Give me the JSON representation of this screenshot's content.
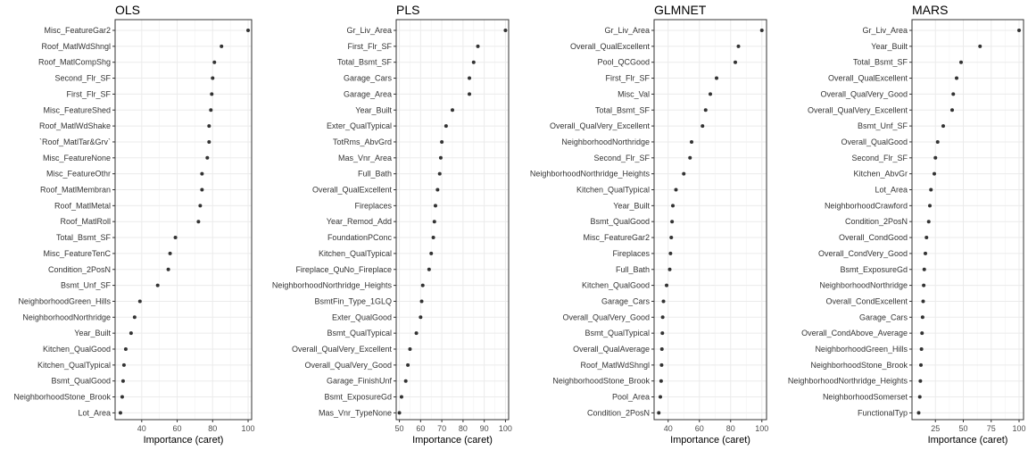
{
  "chart_data": [
    {
      "type": "scatter",
      "title": "OLS",
      "xlabel": "Importance (caret)",
      "ylabel": "",
      "xlim": [
        25,
        102
      ],
      "xticks": [
        40,
        60,
        80,
        100
      ],
      "grid": true,
      "legend": "none",
      "categories": [
        "Misc_FeatureGar2",
        "Roof_MatlWdShngl",
        "Roof_MatlCompShg",
        "Second_Flr_SF",
        "First_Flr_SF",
        "Misc_FeatureShed",
        "Roof_MatlWdShake",
        "`Roof_MatlTar&Grv`",
        "Misc_FeatureNone",
        "Misc_FeatureOthr",
        "Roof_MatlMembran",
        "Roof_MatlMetal",
        "Roof_MatlRoll",
        "Total_Bsmt_SF",
        "Misc_FeatureTenC",
        "Condition_2PosN",
        "Bsmt_Unf_SF",
        "NeighborhoodGreen_Hills",
        "NeighborhoodNorthridge",
        "Year_Built",
        "Kitchen_QualGood",
        "Kitchen_QualTypical",
        "Bsmt_QualGood",
        "NeighborhoodStone_Brook",
        "Lot_Area"
      ],
      "values": [
        100,
        85,
        81,
        80,
        79.5,
        79,
        78,
        78,
        77,
        74,
        74,
        73,
        72,
        59,
        56,
        55,
        49,
        39,
        36,
        34,
        31,
        30,
        29.5,
        29,
        28
      ]
    },
    {
      "type": "scatter",
      "title": "PLS",
      "xlabel": "Importance (caret)",
      "ylabel": "",
      "xlim": [
        48.5,
        101.5
      ],
      "xticks": [
        50,
        60,
        70,
        80,
        90,
        100
      ],
      "grid": true,
      "legend": "none",
      "categories": [
        "Gr_Liv_Area",
        "First_Flr_SF",
        "Total_Bsmt_SF",
        "Garage_Cars",
        "Garage_Area",
        "Year_Built",
        "Exter_QualTypical",
        "TotRms_AbvGrd",
        "Mas_Vnr_Area",
        "Full_Bath",
        "Overall_QualExcellent",
        "Fireplaces",
        "Year_Remod_Add",
        "FoundationPConc",
        "Kitchen_QualTypical",
        "Fireplace_QuNo_Fireplace",
        "NeighborhoodNorthridge_Heights",
        "BsmtFin_Type_1GLQ",
        "Exter_QualGood",
        "Bsmt_QualTypical",
        "Overall_QualVery_Excellent",
        "Overall_QualVery_Good",
        "Garage_FinishUnf",
        "Bsmt_ExposureGd",
        "Mas_Vnr_TypeNone"
      ],
      "values": [
        100,
        87,
        85,
        83,
        83,
        75,
        72,
        70,
        69.5,
        69,
        68,
        67,
        66.5,
        66,
        65,
        64,
        61,
        60.5,
        60,
        58,
        55,
        54,
        53,
        51,
        50
      ]
    },
    {
      "type": "scatter",
      "title": "GLMNET",
      "xlabel": "Importance (caret)",
      "ylabel": "",
      "xlim": [
        31,
        103
      ],
      "xticks": [
        40,
        60,
        80,
        100
      ],
      "grid": true,
      "legend": "none",
      "categories": [
        "Gr_Liv_Area",
        "Overall_QualExcellent",
        "Pool_QCGood",
        "First_Flr_SF",
        "Misc_Val",
        "Total_Bsmt_SF",
        "Overall_QualVery_Excellent",
        "NeighborhoodNorthridge",
        "Second_Flr_SF",
        "NeighborhoodNorthridge_Heights",
        "Kitchen_QualTypical",
        "Year_Built",
        "Bsmt_QualGood",
        "Misc_FeatureGar2",
        "Fireplaces",
        "Full_Bath",
        "Kitchen_QualGood",
        "Garage_Cars",
        "Overall_QualVery_Good",
        "Bsmt_QualTypical",
        "Overall_QualAverage",
        "Roof_MatlWdShngl",
        "NeighborhoodStone_Brook",
        "Pool_Area",
        "Condition_2PosN"
      ],
      "values": [
        100,
        85,
        83,
        71,
        67,
        64,
        62,
        55,
        54,
        50,
        45,
        43,
        42.5,
        42,
        41.5,
        41,
        39,
        37,
        36.5,
        36.3,
        36,
        35.8,
        35.5,
        35,
        34
      ]
    },
    {
      "type": "scatter",
      "title": "MARS",
      "xlabel": "Importance (caret)",
      "ylabel": "",
      "xlim": [
        4,
        104
      ],
      "xticks": [
        25,
        50,
        75,
        100
      ],
      "grid": true,
      "legend": "none",
      "categories": [
        "Gr_Liv_Area",
        "Year_Built",
        "Total_Bsmt_SF",
        "Overall_QualExcellent",
        "Overall_QualVery_Good",
        "Overall_QualVery_Excellent",
        "Bsmt_Unf_SF",
        "Overall_QualGood",
        "Second_Flr_SF",
        "Kitchen_AbvGr",
        "Lot_Area",
        "NeighborhoodCrawford",
        "Condition_2PosN",
        "Overall_CondGood",
        "Overall_CondVery_Good",
        "Bsmt_ExposureGd",
        "NeighborhoodNorthridge",
        "Overall_CondExcellent",
        "Garage_Cars",
        "Overall_CondAbove_Average",
        "NeighborhoodGreen_Hills",
        "NeighborhoodStone_Brook",
        "NeighborhoodNorthridge_Heights",
        "NeighborhoodSomerset",
        "FunctionalTyp"
      ],
      "values": [
        100,
        65,
        48,
        44,
        41,
        40,
        32,
        27,
        25,
        24,
        21,
        20,
        19,
        17,
        16,
        15,
        14.5,
        14,
        13.5,
        13,
        12.5,
        12,
        11.5,
        11,
        10
      ]
    }
  ]
}
